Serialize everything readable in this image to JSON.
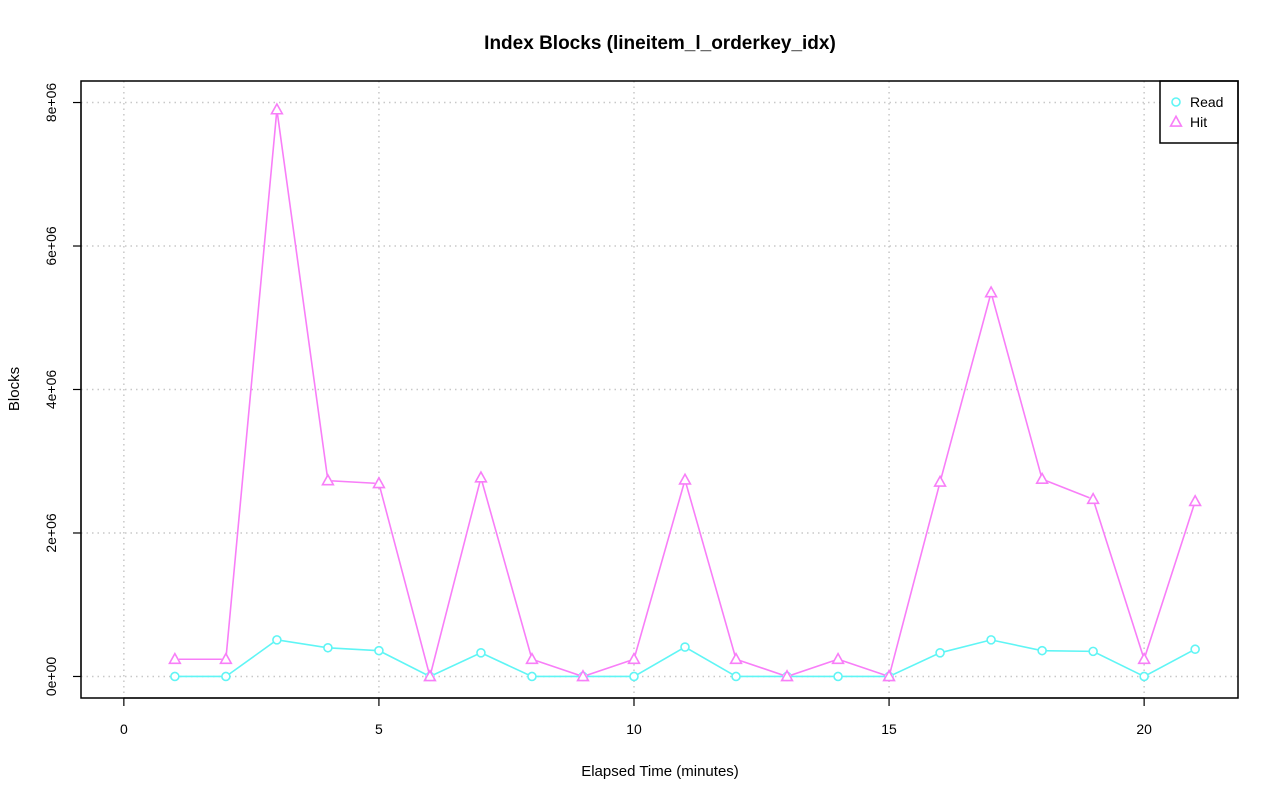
{
  "chart_data": {
    "type": "line",
    "title": "Index Blocks (lineitem_l_orderkey_idx)",
    "xlabel": "Elapsed Time (minutes)",
    "ylabel": "Blocks",
    "xlim": [
      -0.84,
      21.84
    ],
    "ylim": [
      -300000,
      8300000
    ],
    "xticks": [
      0,
      5,
      10,
      15,
      20
    ],
    "xtick_labels": [
      "0",
      "5",
      "10",
      "15",
      "20"
    ],
    "yticks": [
      0,
      2000000,
      4000000,
      6000000,
      8000000
    ],
    "ytick_labels": [
      "0e+00",
      "2e+06",
      "4e+06",
      "6e+06",
      "8e+06"
    ],
    "grid": true,
    "legend_position": "top-right",
    "x": [
      1,
      2,
      3,
      4,
      5,
      6,
      7,
      8,
      9,
      10,
      11,
      12,
      13,
      14,
      15,
      16,
      17,
      18,
      19,
      20,
      21
    ],
    "series": [
      {
        "name": "Read",
        "color": "#5ff5f5",
        "marker": "circle",
        "values": [
          0,
          0,
          510000,
          400000,
          360000,
          0,
          330000,
          0,
          0,
          0,
          410000,
          0,
          0,
          0,
          0,
          330000,
          510000,
          360000,
          350000,
          0,
          380000
        ]
      },
      {
        "name": "Hit",
        "color": "#f87ef8",
        "marker": "triangle",
        "values": [
          240000,
          240000,
          7900000,
          2730000,
          2690000,
          0,
          2770000,
          240000,
          0,
          240000,
          2740000,
          240000,
          0,
          240000,
          0,
          2710000,
          5350000,
          2750000,
          2470000,
          240000,
          2440000
        ]
      }
    ]
  }
}
